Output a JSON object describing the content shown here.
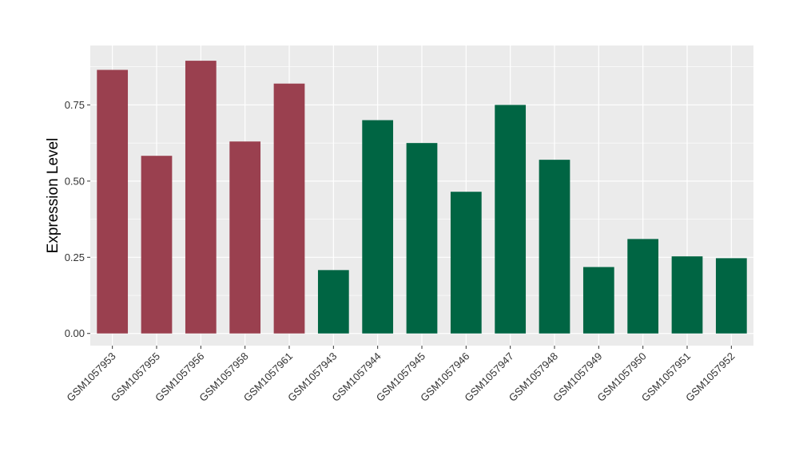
{
  "chart_data": {
    "type": "bar",
    "title": "",
    "xlabel": "",
    "ylabel": "Expression Level",
    "ylim": [
      -0.04,
      0.945
    ],
    "yticks": [
      0.0,
      0.25,
      0.5,
      0.75
    ],
    "ytick_labels": [
      "0.00",
      "0.25",
      "0.50",
      "0.75"
    ],
    "grid": true,
    "legend": "none",
    "categories": [
      "GSM1057953",
      "GSM1057955",
      "GSM1057956",
      "GSM1057958",
      "GSM1057961",
      "GSM1057943",
      "GSM1057944",
      "GSM1057945",
      "GSM1057946",
      "GSM1057947",
      "GSM1057948",
      "GSM1057949",
      "GSM1057950",
      "GSM1057951",
      "GSM1057952"
    ],
    "values": [
      0.865,
      0.583,
      0.895,
      0.63,
      0.82,
      0.208,
      0.7,
      0.625,
      0.465,
      0.75,
      0.57,
      0.218,
      0.31,
      0.253,
      0.247
    ],
    "colors": [
      "#9a404f",
      "#9a404f",
      "#9a404f",
      "#9a404f",
      "#9a404f",
      "#006543",
      "#006543",
      "#006543",
      "#006543",
      "#006543",
      "#006543",
      "#006543",
      "#006543",
      "#006543",
      "#006543"
    ],
    "panel_background": "#ebebeb",
    "grid_color": "#ffffff"
  }
}
